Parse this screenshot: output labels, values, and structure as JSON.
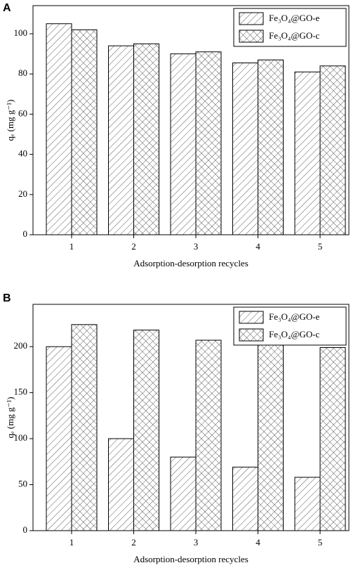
{
  "chart_data": [
    {
      "type": "bar",
      "panel_label": "A",
      "x_label": "Adsorption-desorption recycles",
      "y_label": "qₑ (mg g⁻¹)",
      "categories": [
        "1",
        "2",
        "3",
        "4",
        "5"
      ],
      "series": [
        {
          "name": "Fe₃O₄@GO-e",
          "color": "#000000",
          "hatch": "diagonal",
          "values": [
            105,
            94,
            90,
            85.5,
            81
          ]
        },
        {
          "name": "Fe₃O₄@GO-c",
          "color": "#000000",
          "hatch": "crosshatch",
          "values": [
            102,
            95,
            91,
            87,
            84
          ]
        }
      ],
      "ylim": [
        0,
        114
      ],
      "yticks": [
        0,
        20,
        40,
        60,
        80,
        100
      ],
      "legend": "upper right"
    },
    {
      "type": "bar",
      "panel_label": "B",
      "x_label": "Adsorption-desorption recycles",
      "y_label": "qₑ (mg g⁻¹)",
      "categories": [
        "1",
        "2",
        "3",
        "4",
        "5"
      ],
      "series": [
        {
          "name": "Fe₃O₄@GO-e",
          "color": "#000000",
          "hatch": "diagonal",
          "values": [
            200,
            100,
            80,
            69,
            58
          ]
        },
        {
          "name": "Fe₃O₄@GO-c",
          "color": "#000000",
          "hatch": "crosshatch",
          "values": [
            224,
            218,
            207,
            202,
            199
          ]
        }
      ],
      "ylim": [
        0,
        246
      ],
      "yticks": [
        0,
        50,
        100,
        150,
        200
      ],
      "legend": "upper right"
    }
  ]
}
